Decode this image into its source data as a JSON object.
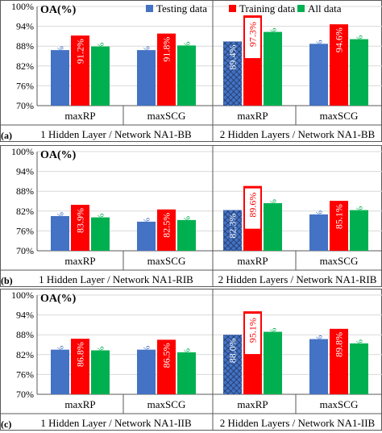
{
  "colors": {
    "testing": "#4472C4",
    "training": "#FF0000",
    "all": "#00B050",
    "axis": "#595959",
    "grid": "#D9D9D9",
    "text": "#000000"
  },
  "legend": [
    {
      "key": "testing",
      "label": "Testing data"
    },
    {
      "key": "training",
      "label": "Training data"
    },
    {
      "key": "all",
      "label": "All data"
    }
  ],
  "chart_data": [
    {
      "type": "bar",
      "panel_label": "(a)",
      "ylabel": "OA(%)",
      "ylim": [
        70,
        100
      ],
      "yticks": [
        "70%",
        "76%",
        "82%",
        "88%",
        "94%",
        "100%"
      ],
      "categories": [
        "maxRP",
        "maxSCG",
        "maxRP",
        "maxSCG"
      ],
      "groups": [
        "1 Hidden Layer / Network NA1-BB",
        "2 Hidden Layers / Network NA1-BB"
      ],
      "series": [
        {
          "name": "Testing data",
          "values": [
            86.8,
            86.8,
            89.4,
            88.7
          ],
          "labels": [
            "86.8%",
            "86.8%",
            "89.4%",
            "88.7%"
          ]
        },
        {
          "name": "Training data",
          "values": [
            91.2,
            91.8,
            97.3,
            94.6
          ],
          "labels": [
            "91.2%",
            "91.8%",
            "97.3%",
            "94.6%"
          ]
        },
        {
          "name": "All data",
          "values": [
            87.9,
            88.2,
            92.3,
            90.1
          ],
          "labels": [
            "87.9%",
            "88.2%",
            "92.3%",
            "90.1%"
          ]
        }
      ],
      "highlight": {
        "category_index": 2
      }
    },
    {
      "type": "bar",
      "panel_label": "(b)",
      "ylabel": "OA(%)",
      "ylim": [
        70,
        100
      ],
      "yticks": [
        "70%",
        "76%",
        "82%",
        "88%",
        "94%",
        "100%"
      ],
      "categories": [
        "maxRP",
        "maxSCG",
        "maxRP",
        "maxSCG"
      ],
      "groups": [
        "1 Hidden Layer / Network NA1-RIB",
        "2 Hidden Layers / Network NA1-RIB"
      ],
      "series": [
        {
          "name": "Testing data",
          "values": [
            80.5,
            78.8,
            82.3,
            81.0
          ],
          "labels": [
            "80.5%",
            "78.8%",
            "82.3%",
            "81.0%"
          ]
        },
        {
          "name": "Training data",
          "values": [
            83.9,
            82.5,
            89.6,
            85.1
          ],
          "labels": [
            "83.9%",
            "82.5%",
            "89.6%",
            "85.1%"
          ]
        },
        {
          "name": "All data",
          "values": [
            80.1,
            79.3,
            84.4,
            82.3
          ],
          "labels": [
            "80.1%",
            "79.3%",
            "84.4%",
            "82.3%"
          ]
        }
      ],
      "highlight": {
        "category_index": 2
      }
    },
    {
      "type": "bar",
      "panel_label": "(c)",
      "ylabel": "OA(%)",
      "ylim": [
        70,
        100
      ],
      "yticks": [
        "70%",
        "76%",
        "82%",
        "88%",
        "94%",
        "100%"
      ],
      "categories": [
        "maxRP",
        "maxSCG",
        "maxRP",
        "maxSCG"
      ],
      "groups": [
        "1 Hidden Layer / Network NA1-IIB",
        "2 Hidden Layers / Network NA1-IIB"
      ],
      "series": [
        {
          "name": "Testing data",
          "values": [
            83.5,
            83.5,
            88.0,
            86.7
          ],
          "labels": [
            "83.5%",
            "83.5%",
            "88.0%",
            "86.7%"
          ]
        },
        {
          "name": "Training data",
          "values": [
            86.8,
            86.5,
            95.1,
            89.8
          ],
          "labels": [
            "86.8%",
            "86.5%",
            "95.1%",
            "89.8%"
          ]
        },
        {
          "name": "All data",
          "values": [
            83.3,
            82.7,
            88.9,
            85.4
          ],
          "labels": [
            "83.3%",
            "82.7%",
            "88.9%",
            "85.4%"
          ]
        }
      ],
      "highlight": {
        "category_index": 2
      }
    }
  ]
}
